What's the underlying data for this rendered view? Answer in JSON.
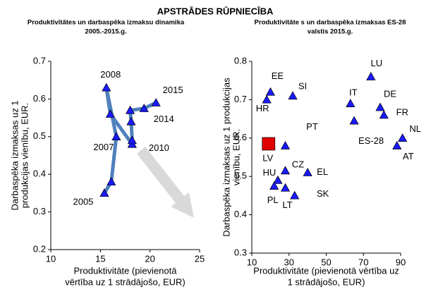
{
  "title": "APSTRĀDES RŪPNIECĪBA",
  "chart_data": [
    {
      "type": "line",
      "title": [
        "Produktivitātes un darbaspēka izmaksu dinamika",
        "2005.-2015.g."
      ],
      "xlabel": [
        "Produktivitāte (pievienotā",
        "vērtība uz 1 strādājošo, EUR)"
      ],
      "ylabel": [
        "Darbaspēka izmaksas uz 1",
        "produkcijas vienību, EUR."
      ],
      "x": [
        15.4,
        16.1,
        16.6,
        15.6,
        16.0,
        18.2,
        18.2,
        18.1,
        18.0,
        19.4,
        20.6
      ],
      "y": [
        0.35,
        0.38,
        0.5,
        0.63,
        0.56,
        0.48,
        0.49,
        0.54,
        0.57,
        0.575,
        0.59
      ],
      "labels": [
        "2005",
        null,
        "2007",
        "2008",
        null,
        "2010",
        null,
        null,
        null,
        "2014",
        "2015"
      ],
      "line_color": "#4f81bd",
      "marker_color": "#1a1aff",
      "xlim": [
        10,
        25
      ],
      "xticks": [
        10,
        15,
        20,
        25
      ],
      "ylim": [
        0.2,
        0.7
      ],
      "yticks": [
        0.2,
        0.3,
        0.4,
        0.5,
        0.6,
        0.7
      ],
      "grid": false
    },
    {
      "type": "scatter",
      "title": [
        "Produktivitāte s un darbaspēka izmaksas ES-28",
        "valstis 2015.g."
      ],
      "xlabel": [
        "Produktivitāte (pievienotā vērtība uz",
        "1 strādājošo, EUR)"
      ],
      "ylabel": [
        "Darbaspēka izmaksas uz 1 produkcijas",
        "vienību, EUR."
      ],
      "labels": [
        "EE",
        "HR",
        "SI",
        "IT",
        "LU",
        "DE",
        "FR",
        "ES-28",
        "NL",
        "AT",
        "LV",
        "PT",
        "CZ",
        "EL",
        "HU",
        "PL",
        "LT",
        "SK"
      ],
      "x": [
        20,
        18,
        32,
        63,
        74,
        79,
        81,
        65,
        91,
        88,
        19,
        28,
        28,
        40,
        24,
        22,
        28,
        33
      ],
      "y": [
        0.72,
        0.7,
        0.71,
        0.69,
        0.76,
        0.68,
        0.66,
        0.645,
        0.6,
        0.58,
        0.585,
        0.58,
        0.515,
        0.51,
        0.49,
        0.475,
        0.47,
        0.45
      ],
      "point_colors": [
        "#1a1aff",
        "#1a1aff",
        "#1a1aff",
        "#1a1aff",
        "#1a1aff",
        "#1a1aff",
        "#1a1aff",
        "#1a1aff",
        "#1a1aff",
        "#1a1aff",
        "#e00000",
        "#1a1aff",
        "#1a1aff",
        "#1a1aff",
        "#1a1aff",
        "#1a1aff",
        "#1a1aff",
        "#1a1aff"
      ],
      "xlim": [
        10,
        90
      ],
      "xticks": [
        10,
        30,
        50,
        70,
        90
      ],
      "ylim": [
        0.3,
        0.8
      ],
      "yticks": [
        0.3,
        0.4,
        0.5,
        0.6,
        0.7,
        0.8
      ],
      "grid": false
    }
  ]
}
